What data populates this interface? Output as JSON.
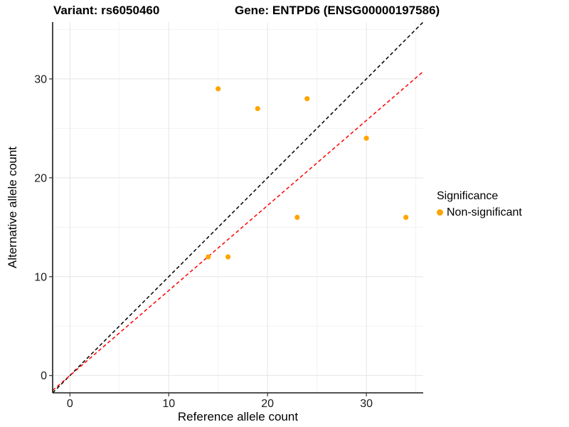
{
  "chart_data": {
    "type": "scatter",
    "title_left": "Variant: rs6050460",
    "title_right": "Gene: ENTPD6 (ENSG00000197586)",
    "xlabel": "Reference allele count",
    "ylabel": "Alternative allele count",
    "xlim": [
      -1.75,
      35.75
    ],
    "ylim": [
      -1.75,
      35.75
    ],
    "xticks": [
      0,
      10,
      20,
      30
    ],
    "yticks": [
      0,
      10,
      20,
      30
    ],
    "minor_gridlines": [
      5,
      15,
      25,
      35
    ],
    "grid": "major and minor light gray gridlines on white background",
    "legend": {
      "title": "Significance",
      "position": "right",
      "items": [
        {
          "label": "Non-significant",
          "color": "#FFA500",
          "marker": "circle"
        }
      ]
    },
    "series": [
      {
        "name": "Non-significant",
        "color": "#FFA500",
        "marker": "circle",
        "points": [
          [
            15,
            29
          ],
          [
            24,
            28
          ],
          [
            19,
            27
          ],
          [
            30,
            24
          ],
          [
            23,
            16
          ],
          [
            34,
            16
          ],
          [
            14,
            12
          ],
          [
            16,
            12
          ]
        ]
      }
    ],
    "reference_lines": [
      {
        "name": "identity-line",
        "slope": 1,
        "intercept": 0,
        "color": "#000000",
        "style": "dashed"
      },
      {
        "name": "regression-line",
        "slope": 0.86,
        "intercept": 0,
        "color": "#FF0000",
        "style": "dashed"
      }
    ],
    "colors": {
      "point": "#FFA500",
      "identity_line": "#000000",
      "regression_line": "#FF0000",
      "grid_major": "#E5E5E5",
      "grid_minor": "#F2F2F2",
      "axis_line": "#1A1A1A",
      "tick_label": "#1A1A1A"
    }
  }
}
